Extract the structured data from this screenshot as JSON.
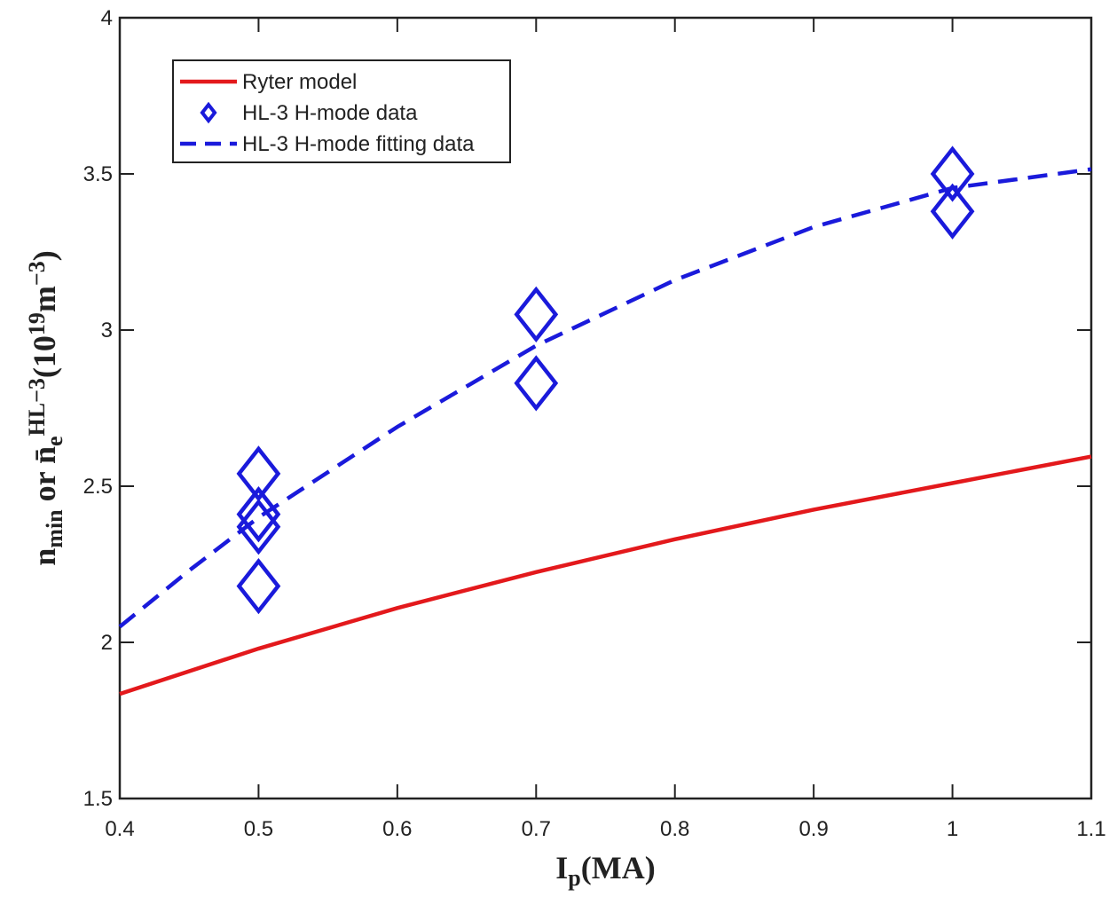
{
  "chart_data": {
    "type": "line",
    "xlabel": [
      "I",
      "p",
      "(MA)"
    ],
    "ylabel": [
      "n",
      "min",
      " or ",
      "n̄",
      "e",
      "HL−3",
      "(10",
      "19",
      "m",
      "−3",
      ")"
    ],
    "xlim": [
      0.4,
      1.1
    ],
    "xticks": [
      0.4,
      0.5,
      0.6,
      0.7,
      0.8,
      0.9,
      1,
      1.1
    ],
    "ylim": [
      1.5,
      4
    ],
    "yticks": [
      1.5,
      2,
      2.5,
      3,
      3.5,
      4
    ],
    "legend": "upper left",
    "series": [
      {
        "name": "Ryter model",
        "color": "#e3191c",
        "linestyle": "solid",
        "marker": "none",
        "x": [
          0.4,
          0.5,
          0.6,
          0.7,
          0.8,
          0.9,
          1.0,
          1.1
        ],
        "values": [
          1.835,
          1.98,
          2.11,
          2.225,
          2.33,
          2.425,
          2.51,
          2.595
        ]
      },
      {
        "name": "HL-3 H-mode data",
        "color": "#1a1adb",
        "linestyle": "none",
        "marker": "diamond",
        "x": [
          0.5,
          0.5,
          0.5,
          0.5,
          0.7,
          0.7,
          1.0,
          1.0
        ],
        "values": [
          2.54,
          2.41,
          2.37,
          2.18,
          3.05,
          2.83,
          3.5,
          3.38
        ]
      },
      {
        "name": "HL-3 H-mode fitting data",
        "color": "#1a1adb",
        "linestyle": "dashed",
        "marker": "none",
        "x": [
          0.4,
          0.45,
          0.5,
          0.6,
          0.7,
          0.8,
          0.9,
          1.0,
          1.1
        ],
        "values": [
          2.05,
          2.23,
          2.4,
          2.69,
          2.95,
          3.16,
          3.33,
          3.455,
          3.515
        ]
      }
    ]
  }
}
